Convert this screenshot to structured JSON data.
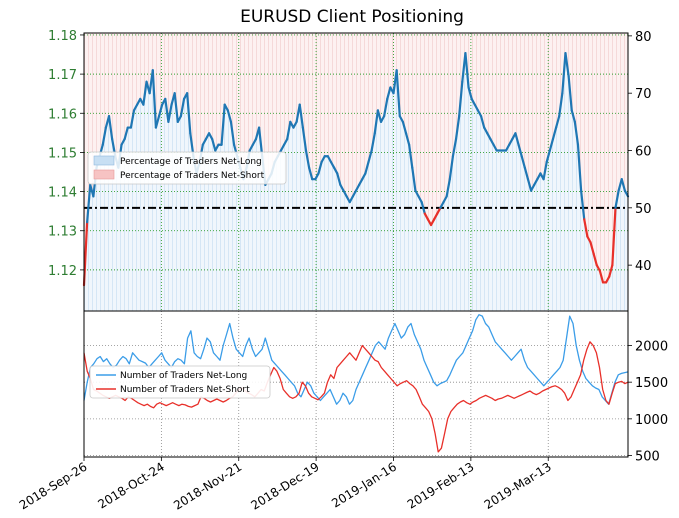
{
  "chart_data": [
    {
      "type": "line",
      "title": "EURUSD Client Positioning",
      "price_axis": {
        "side": "left",
        "ticks": [
          "1.18",
          "1.17",
          "1.16",
          "1.15",
          "1.14",
          "1.13",
          "1.12"
        ],
        "ylim": [
          1.1095,
          1.1805
        ],
        "color": "#2e7d32"
      },
      "pct_axis": {
        "side": "right",
        "ticks": [
          "80",
          "70",
          "60",
          "50",
          "40"
        ],
        "ylim": [
          32,
          80.5
        ]
      },
      "reference_line": 50,
      "legend": {
        "position": "upper-left",
        "entries": [
          "Percentage of Traders Net-Long",
          "Percentage of Traders Net-Short"
        ]
      },
      "long_color": "#1f77b4",
      "short_color": "#e8302a",
      "series": [
        {
          "name": "Percentage of Traders Net-Long",
          "values": [
            36.5,
            47.5,
            54,
            52,
            57,
            59,
            61,
            64,
            66,
            62,
            59,
            57,
            61,
            62,
            64,
            64,
            67,
            68,
            69,
            68,
            72,
            70,
            74,
            64,
            66,
            68,
            69,
            65,
            68,
            70,
            65,
            66,
            69,
            70,
            63,
            59,
            56,
            58,
            61,
            62,
            63,
            62,
            60,
            61,
            61,
            68,
            67,
            65,
            61,
            59,
            57,
            55,
            57,
            60,
            61,
            62,
            64,
            59,
            54,
            55,
            56,
            58,
            59,
            60,
            61,
            62,
            65,
            64,
            65,
            68,
            64,
            60,
            57,
            55,
            55,
            56,
            58,
            59,
            59,
            58,
            57,
            56,
            54,
            53,
            52,
            51,
            52,
            53,
            54,
            55,
            56,
            58,
            60,
            63,
            67,
            65,
            66,
            69,
            71,
            70,
            74,
            66,
            65,
            63,
            61,
            57,
            53,
            52,
            51,
            49,
            48,
            47,
            48,
            49,
            50,
            51,
            52,
            55,
            59,
            62,
            66,
            72,
            77,
            71,
            69,
            68,
            67,
            66,
            64,
            63,
            62,
            61,
            60,
            60,
            60,
            60,
            61,
            62,
            63,
            61,
            59,
            57,
            55,
            53,
            54,
            55,
            56,
            55,
            58,
            60,
            62,
            64,
            66,
            70,
            77,
            73,
            67,
            65,
            61,
            53,
            48,
            45,
            44,
            42,
            40,
            39,
            37,
            37,
            38,
            40,
            50,
            53,
            55,
            53,
            52
          ]
        }
      ]
    },
    {
      "type": "line",
      "count_axis": {
        "side": "right",
        "ticks": [
          "2000",
          "1500",
          "1000",
          "500"
        ],
        "ylim": [
          480,
          2470
        ]
      },
      "x_ticks": [
        "2018-Sep-26",
        "2018-Oct-24",
        "2018-Nov-21",
        "2018-Dec-19",
        "2019-Jan-16",
        "2019-Feb-13",
        "2019-Mar-13"
      ],
      "legend": {
        "position": "center-left",
        "entries": [
          "Number of Traders Net-Long",
          "Number of Traders Net-Short"
        ]
      },
      "series": [
        {
          "name": "Number of Traders Net-Long",
          "color": "#3b9de8",
          "values": [
            1250,
            1500,
            1700,
            1750,
            1820,
            1850,
            1780,
            1820,
            1750,
            1700,
            1730,
            1800,
            1850,
            1820,
            1750,
            1900,
            1850,
            1800,
            1780,
            1760,
            1700,
            1750,
            1800,
            1850,
            1900,
            1800,
            1750,
            1700,
            1780,
            1820,
            1800,
            1750,
            2100,
            2200,
            1900,
            1850,
            1820,
            1950,
            2100,
            2050,
            1900,
            1850,
            1800,
            2000,
            2150,
            2300,
            2100,
            1950,
            1900,
            1850,
            2000,
            2100,
            1950,
            1850,
            1900,
            1950,
            2100,
            1950,
            1800,
            1750,
            1700,
            1650,
            1600,
            1550,
            1500,
            1450,
            1350,
            1300,
            1400,
            1500,
            1450,
            1350,
            1300,
            1250,
            1300,
            1350,
            1400,
            1300,
            1200,
            1250,
            1350,
            1300,
            1200,
            1250,
            1400,
            1500,
            1600,
            1700,
            1800,
            1900,
            2000,
            2050,
            2000,
            1950,
            2100,
            2200,
            2300,
            2200,
            2100,
            2150,
            2250,
            2300,
            2150,
            2050,
            1950,
            1800,
            1700,
            1600,
            1500,
            1450,
            1480,
            1500,
            1520,
            1600,
            1700,
            1800,
            1850,
            1900,
            2000,
            2100,
            2200,
            2350,
            2420,
            2400,
            2300,
            2250,
            2150,
            2050,
            2000,
            1950,
            1900,
            1850,
            1800,
            1850,
            1900,
            1950,
            1800,
            1700,
            1650,
            1600,
            1550,
            1500,
            1450,
            1500,
            1550,
            1600,
            1650,
            1700,
            1800,
            2100,
            2400,
            2300,
            2000,
            1800,
            1650,
            1550,
            1500,
            1450,
            1420,
            1400,
            1300,
            1250,
            1200,
            1350,
            1500,
            1600,
            1620,
            1630,
            1640
          ]
        },
        {
          "name": "Number of Traders Net-Short",
          "color": "#e8302a",
          "values": [
            1900,
            1650,
            1550,
            1400,
            1380,
            1350,
            1320,
            1300,
            1280,
            1300,
            1320,
            1300,
            1280,
            1250,
            1300,
            1280,
            1250,
            1220,
            1200,
            1180,
            1200,
            1170,
            1150,
            1200,
            1220,
            1200,
            1180,
            1200,
            1220,
            1200,
            1180,
            1200,
            1190,
            1170,
            1160,
            1180,
            1200,
            1300,
            1280,
            1250,
            1230,
            1250,
            1270,
            1250,
            1230,
            1250,
            1280,
            1300,
            1350,
            1400,
            1420,
            1380,
            1350,
            1330,
            1300,
            1350,
            1400,
            1380,
            1500,
            1600,
            1700,
            1650,
            1550,
            1400,
            1350,
            1300,
            1280,
            1300,
            1350,
            1500,
            1450,
            1350,
            1300,
            1280,
            1260,
            1300,
            1350,
            1500,
            1600,
            1550,
            1700,
            1750,
            1800,
            1850,
            1900,
            1850,
            1800,
            1900,
            2000,
            1950,
            1900,
            1850,
            1800,
            1780,
            1700,
            1650,
            1600,
            1550,
            1500,
            1450,
            1480,
            1500,
            1520,
            1480,
            1450,
            1400,
            1300,
            1200,
            1150,
            1100,
            1000,
            800,
            550,
            600,
            800,
            1000,
            1100,
            1150,
            1200,
            1230,
            1250,
            1220,
            1200,
            1230,
            1250,
            1280,
            1300,
            1320,
            1300,
            1280,
            1250,
            1270,
            1280,
            1300,
            1320,
            1300,
            1280,
            1300,
            1320,
            1340,
            1360,
            1380,
            1350,
            1330,
            1350,
            1380,
            1400,
            1420,
            1440,
            1450,
            1430,
            1400,
            1350,
            1250,
            1300,
            1400,
            1500,
            1600,
            1800,
            1950,
            2050,
            2000,
            1900,
            1700,
            1400,
            1250,
            1200,
            1350,
            1480,
            1500,
            1510,
            1480,
            1500
          ]
        }
      ]
    }
  ]
}
